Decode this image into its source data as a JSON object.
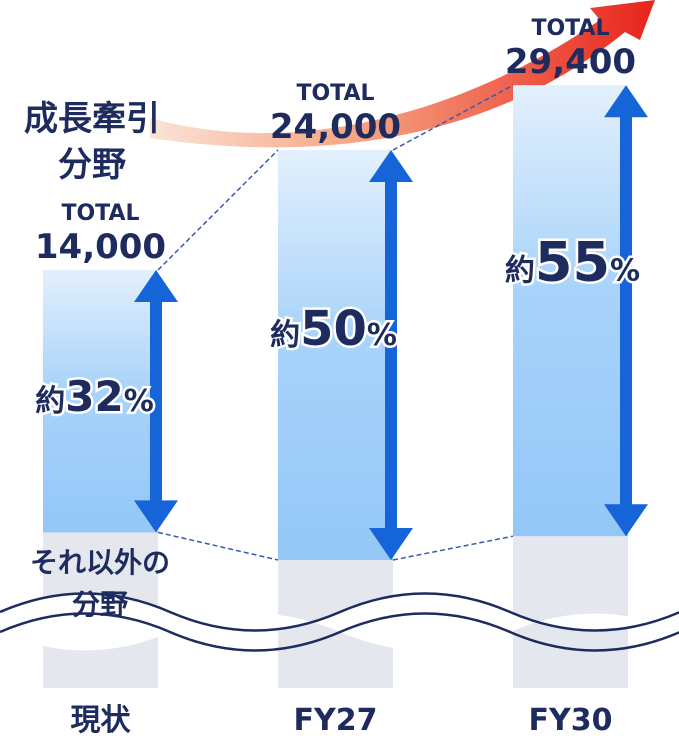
{
  "chart_data": {
    "type": "bar",
    "categories": [
      "現状",
      "FY27",
      "FY30"
    ],
    "total_label": "TOTAL",
    "totals": [
      14000,
      24000,
      29400
    ],
    "total_labels": [
      "14,000",
      "24,000",
      "29,400"
    ],
    "growth_label": [
      "成長牽引",
      "分野"
    ],
    "other_label": [
      "それ以外の",
      "分野"
    ],
    "values": [
      32,
      50,
      55
    ],
    "value_labels": [
      "約32%",
      "約50%",
      "約55%"
    ],
    "color": "#1565d8"
  }
}
